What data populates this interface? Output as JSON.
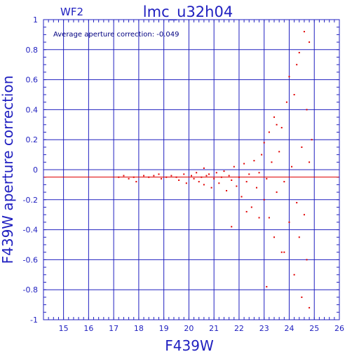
{
  "chart_data": {
    "type": "scatter",
    "panel_label": "WF2",
    "title": "lmc_u32h04",
    "annotation": "Average aperture correction: -0.049",
    "xlabel": "F439W",
    "ylabel": "F439W aperture correction",
    "xlim": [
      14.2,
      26.0
    ],
    "ylim": [
      -1.0,
      1.0
    ],
    "x_ticks": [
      "15",
      "16",
      "17",
      "18",
      "19",
      "20",
      "21",
      "22",
      "23",
      "24",
      "25",
      "26"
    ],
    "y_ticks": [
      "-1",
      "-0.8",
      "-0.6",
      "-0.4",
      "-0.2",
      "0",
      "0.2",
      "0.4",
      "0.6",
      "0.8",
      "1"
    ],
    "grid": true,
    "reference_line": {
      "name": "",
      "y": -0.049
    },
    "colors": {
      "axis": "#2020c0",
      "grid": "#2020c0",
      "points": "#e00000",
      "text": "#2020c0",
      "annotation": "#000080"
    },
    "series": [
      {
        "name": "",
        "points": [
          [
            17.2,
            -0.05
          ],
          [
            17.4,
            -0.04
          ],
          [
            17.6,
            -0.06
          ],
          [
            17.8,
            -0.05
          ],
          [
            17.9,
            -0.08
          ],
          [
            18.2,
            -0.04
          ],
          [
            18.4,
            -0.05
          ],
          [
            18.6,
            -0.04
          ],
          [
            18.8,
            -0.03
          ],
          [
            18.9,
            -0.06
          ],
          [
            19.1,
            -0.05
          ],
          [
            19.3,
            -0.04
          ],
          [
            19.5,
            -0.05
          ],
          [
            19.6,
            -0.07
          ],
          [
            19.8,
            -0.03
          ],
          [
            19.9,
            -0.09
          ],
          [
            20.1,
            -0.04
          ],
          [
            20.2,
            -0.06
          ],
          [
            20.3,
            -0.02
          ],
          [
            20.4,
            -0.08
          ],
          [
            20.5,
            -0.05
          ],
          [
            20.6,
            0.01
          ],
          [
            20.6,
            -0.1
          ],
          [
            20.7,
            -0.04
          ],
          [
            20.8,
            -0.03
          ],
          [
            20.9,
            -0.12
          ],
          [
            21.0,
            -0.06
          ],
          [
            21.1,
            -0.02
          ],
          [
            21.2,
            -0.09
          ],
          [
            21.3,
            -0.05
          ],
          [
            21.4,
            -0.01
          ],
          [
            21.5,
            -0.14
          ],
          [
            21.6,
            -0.04
          ],
          [
            21.7,
            -0.07
          ],
          [
            21.8,
            0.02
          ],
          [
            21.9,
            -0.11
          ],
          [
            22.0,
            -0.05
          ],
          [
            22.1,
            -0.18
          ],
          [
            22.2,
            0.04
          ],
          [
            22.3,
            -0.08
          ],
          [
            22.4,
            -0.03
          ],
          [
            22.5,
            -0.25
          ],
          [
            22.6,
            0.06
          ],
          [
            22.7,
            -0.12
          ],
          [
            22.8,
            -0.02
          ],
          [
            22.9,
            0.1
          ],
          [
            23.0,
            -0.2
          ],
          [
            23.0,
            0.18
          ],
          [
            23.1,
            -0.06
          ],
          [
            23.2,
            -0.32
          ],
          [
            23.2,
            0.25
          ],
          [
            23.3,
            0.05
          ],
          [
            23.4,
            -0.45
          ],
          [
            23.4,
            0.35
          ],
          [
            23.5,
            -0.15
          ],
          [
            23.6,
            0.12
          ],
          [
            23.7,
            -0.55
          ],
          [
            23.7,
            0.28
          ],
          [
            23.8,
            -0.08
          ],
          [
            23.9,
            0.45
          ],
          [
            24.0,
            -0.35
          ],
          [
            24.0,
            0.62
          ],
          [
            24.1,
            0.02
          ],
          [
            24.2,
            -0.7
          ],
          [
            24.2,
            0.5
          ],
          [
            24.3,
            -0.22
          ],
          [
            24.4,
            0.78
          ],
          [
            24.4,
            -0.45
          ],
          [
            24.5,
            0.15
          ],
          [
            24.5,
            -0.85
          ],
          [
            24.6,
            0.92
          ],
          [
            24.6,
            -0.3
          ],
          [
            24.7,
            0.4
          ],
          [
            24.7,
            -0.6
          ],
          [
            24.8,
            0.05
          ],
          [
            24.8,
            -0.92
          ],
          [
            24.9,
            0.2
          ],
          [
            22.8,
            -0.32
          ],
          [
            21.7,
            -0.38
          ],
          [
            23.1,
            -0.78
          ],
          [
            23.8,
            -0.55
          ],
          [
            22.3,
            -0.28
          ],
          [
            23.5,
            0.3
          ],
          [
            24.3,
            0.7
          ],
          [
            24.8,
            0.85
          ]
        ]
      }
    ]
  }
}
